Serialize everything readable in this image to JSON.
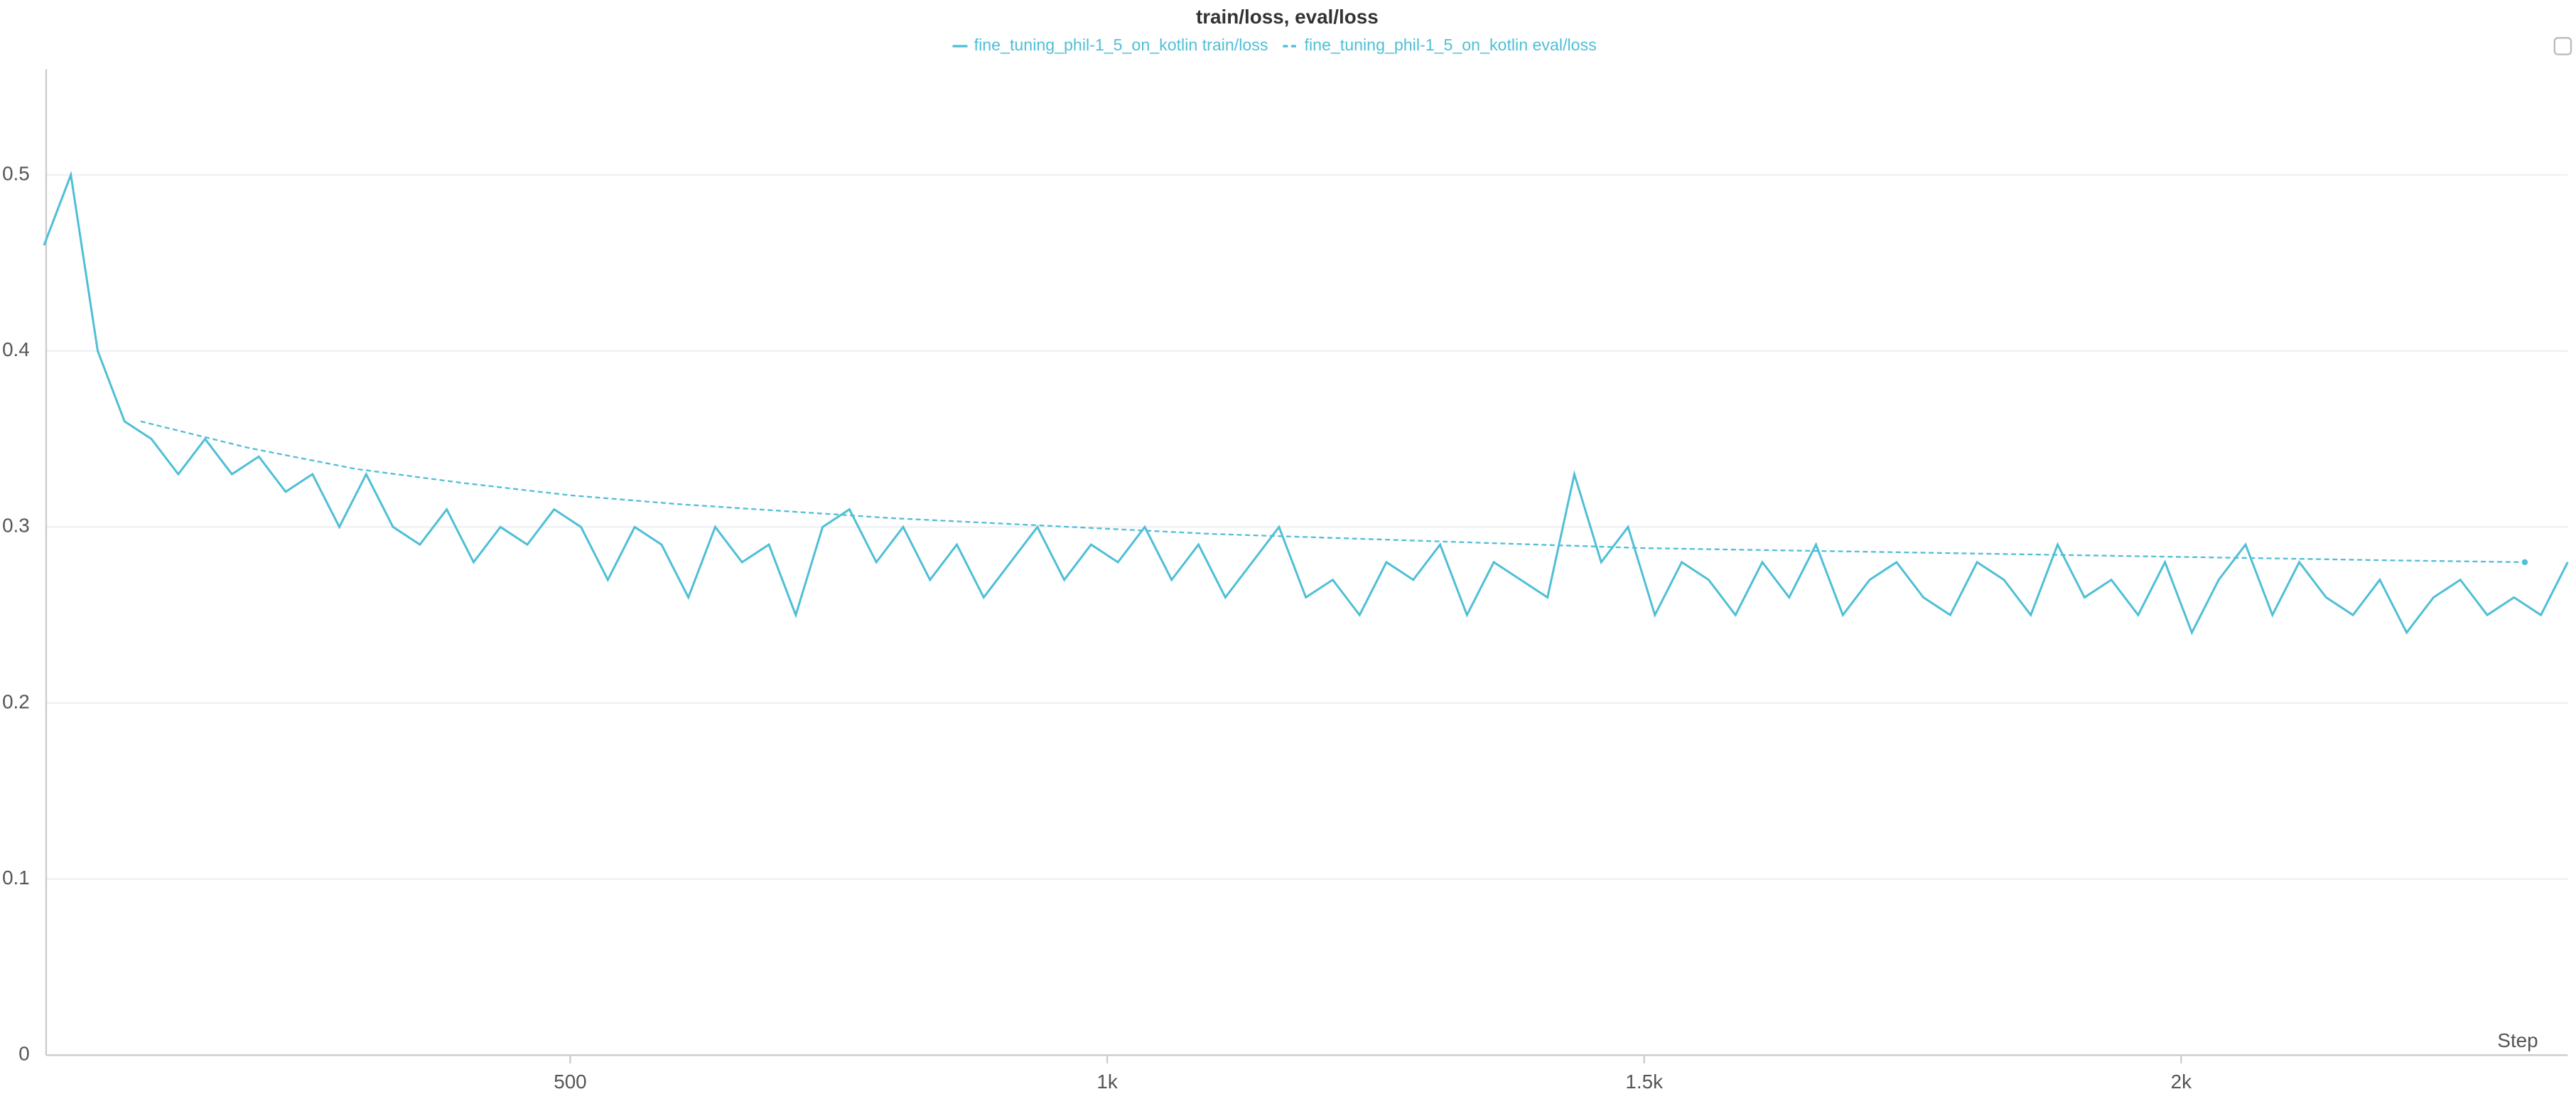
{
  "chart_data": {
    "type": "line",
    "title": "train/loss, eval/loss",
    "xlabel": "Step",
    "xlim": [
      12,
      2360
    ],
    "ylim": [
      0,
      0.56
    ],
    "xticks": [
      500,
      {
        "value": 1000,
        "label": "1k"
      },
      {
        "value": 1500,
        "label": "1.5k"
      },
      {
        "value": 2000,
        "label": "2k"
      }
    ],
    "yticks": [
      0,
      0.1,
      0.2,
      0.3,
      0.4,
      0.5
    ],
    "grid": true,
    "series": [
      {
        "name": "fine_tuning_phil-1_5_on_kotlin train/loss",
        "color": "#4fbfd6",
        "dash": false,
        "x": [
          10,
          35,
          60,
          85,
          110,
          135,
          160,
          185,
          210,
          235,
          260,
          285,
          310,
          335,
          360,
          385,
          410,
          435,
          460,
          485,
          510,
          535,
          560,
          585,
          610,
          635,
          660,
          685,
          710,
          735,
          760,
          785,
          810,
          835,
          860,
          885,
          910,
          935,
          960,
          985,
          1010,
          1035,
          1060,
          1085,
          1110,
          1135,
          1160,
          1185,
          1210,
          1235,
          1260,
          1285,
          1310,
          1335,
          1360,
          1385,
          1410,
          1435,
          1460,
          1485,
          1510,
          1535,
          1560,
          1585,
          1610,
          1635,
          1660,
          1685,
          1710,
          1735,
          1760,
          1785,
          1810,
          1835,
          1860,
          1885,
          1910,
          1935,
          1960,
          1985,
          2010,
          2035,
          2060,
          2085,
          2110,
          2135,
          2160,
          2185,
          2210,
          2235,
          2260,
          2285,
          2310,
          2335,
          2360
        ],
        "values": [
          0.46,
          0.5,
          0.4,
          0.36,
          0.35,
          0.33,
          0.35,
          0.33,
          0.34,
          0.32,
          0.33,
          0.3,
          0.33,
          0.3,
          0.29,
          0.31,
          0.28,
          0.3,
          0.29,
          0.31,
          0.3,
          0.27,
          0.3,
          0.29,
          0.26,
          0.3,
          0.28,
          0.29,
          0.25,
          0.3,
          0.31,
          0.28,
          0.3,
          0.27,
          0.29,
          0.26,
          0.28,
          0.3,
          0.27,
          0.29,
          0.28,
          0.3,
          0.27,
          0.29,
          0.26,
          0.28,
          0.3,
          0.26,
          0.27,
          0.25,
          0.28,
          0.27,
          0.29,
          0.25,
          0.28,
          0.27,
          0.26,
          0.33,
          0.28,
          0.3,
          0.25,
          0.28,
          0.27,
          0.25,
          0.28,
          0.26,
          0.29,
          0.25,
          0.27,
          0.28,
          0.26,
          0.25,
          0.28,
          0.27,
          0.25,
          0.29,
          0.26,
          0.27,
          0.25,
          0.28,
          0.24,
          0.27,
          0.29,
          0.25,
          0.28,
          0.26,
          0.25,
          0.27,
          0.24,
          0.26,
          0.27,
          0.25,
          0.26,
          0.25,
          0.28
        ]
      },
      {
        "name": "fine_tuning_phil-1_5_on_kotlin eval/loss",
        "color": "#4fbfd6",
        "dash": true,
        "x": [
          100,
          200,
          300,
          400,
          500,
          600,
          700,
          800,
          900,
          1000,
          1100,
          1200,
          1300,
          1400,
          1500,
          1600,
          1700,
          1800,
          1900,
          2000,
          2100,
          2200,
          2320
        ],
        "values": [
          0.36,
          0.345,
          0.333,
          0.325,
          0.318,
          0.313,
          0.309,
          0.305,
          0.302,
          0.299,
          0.296,
          0.294,
          0.292,
          0.29,
          0.288,
          0.287,
          0.286,
          0.285,
          0.284,
          0.283,
          0.282,
          0.281,
          0.28
        ]
      }
    ]
  }
}
